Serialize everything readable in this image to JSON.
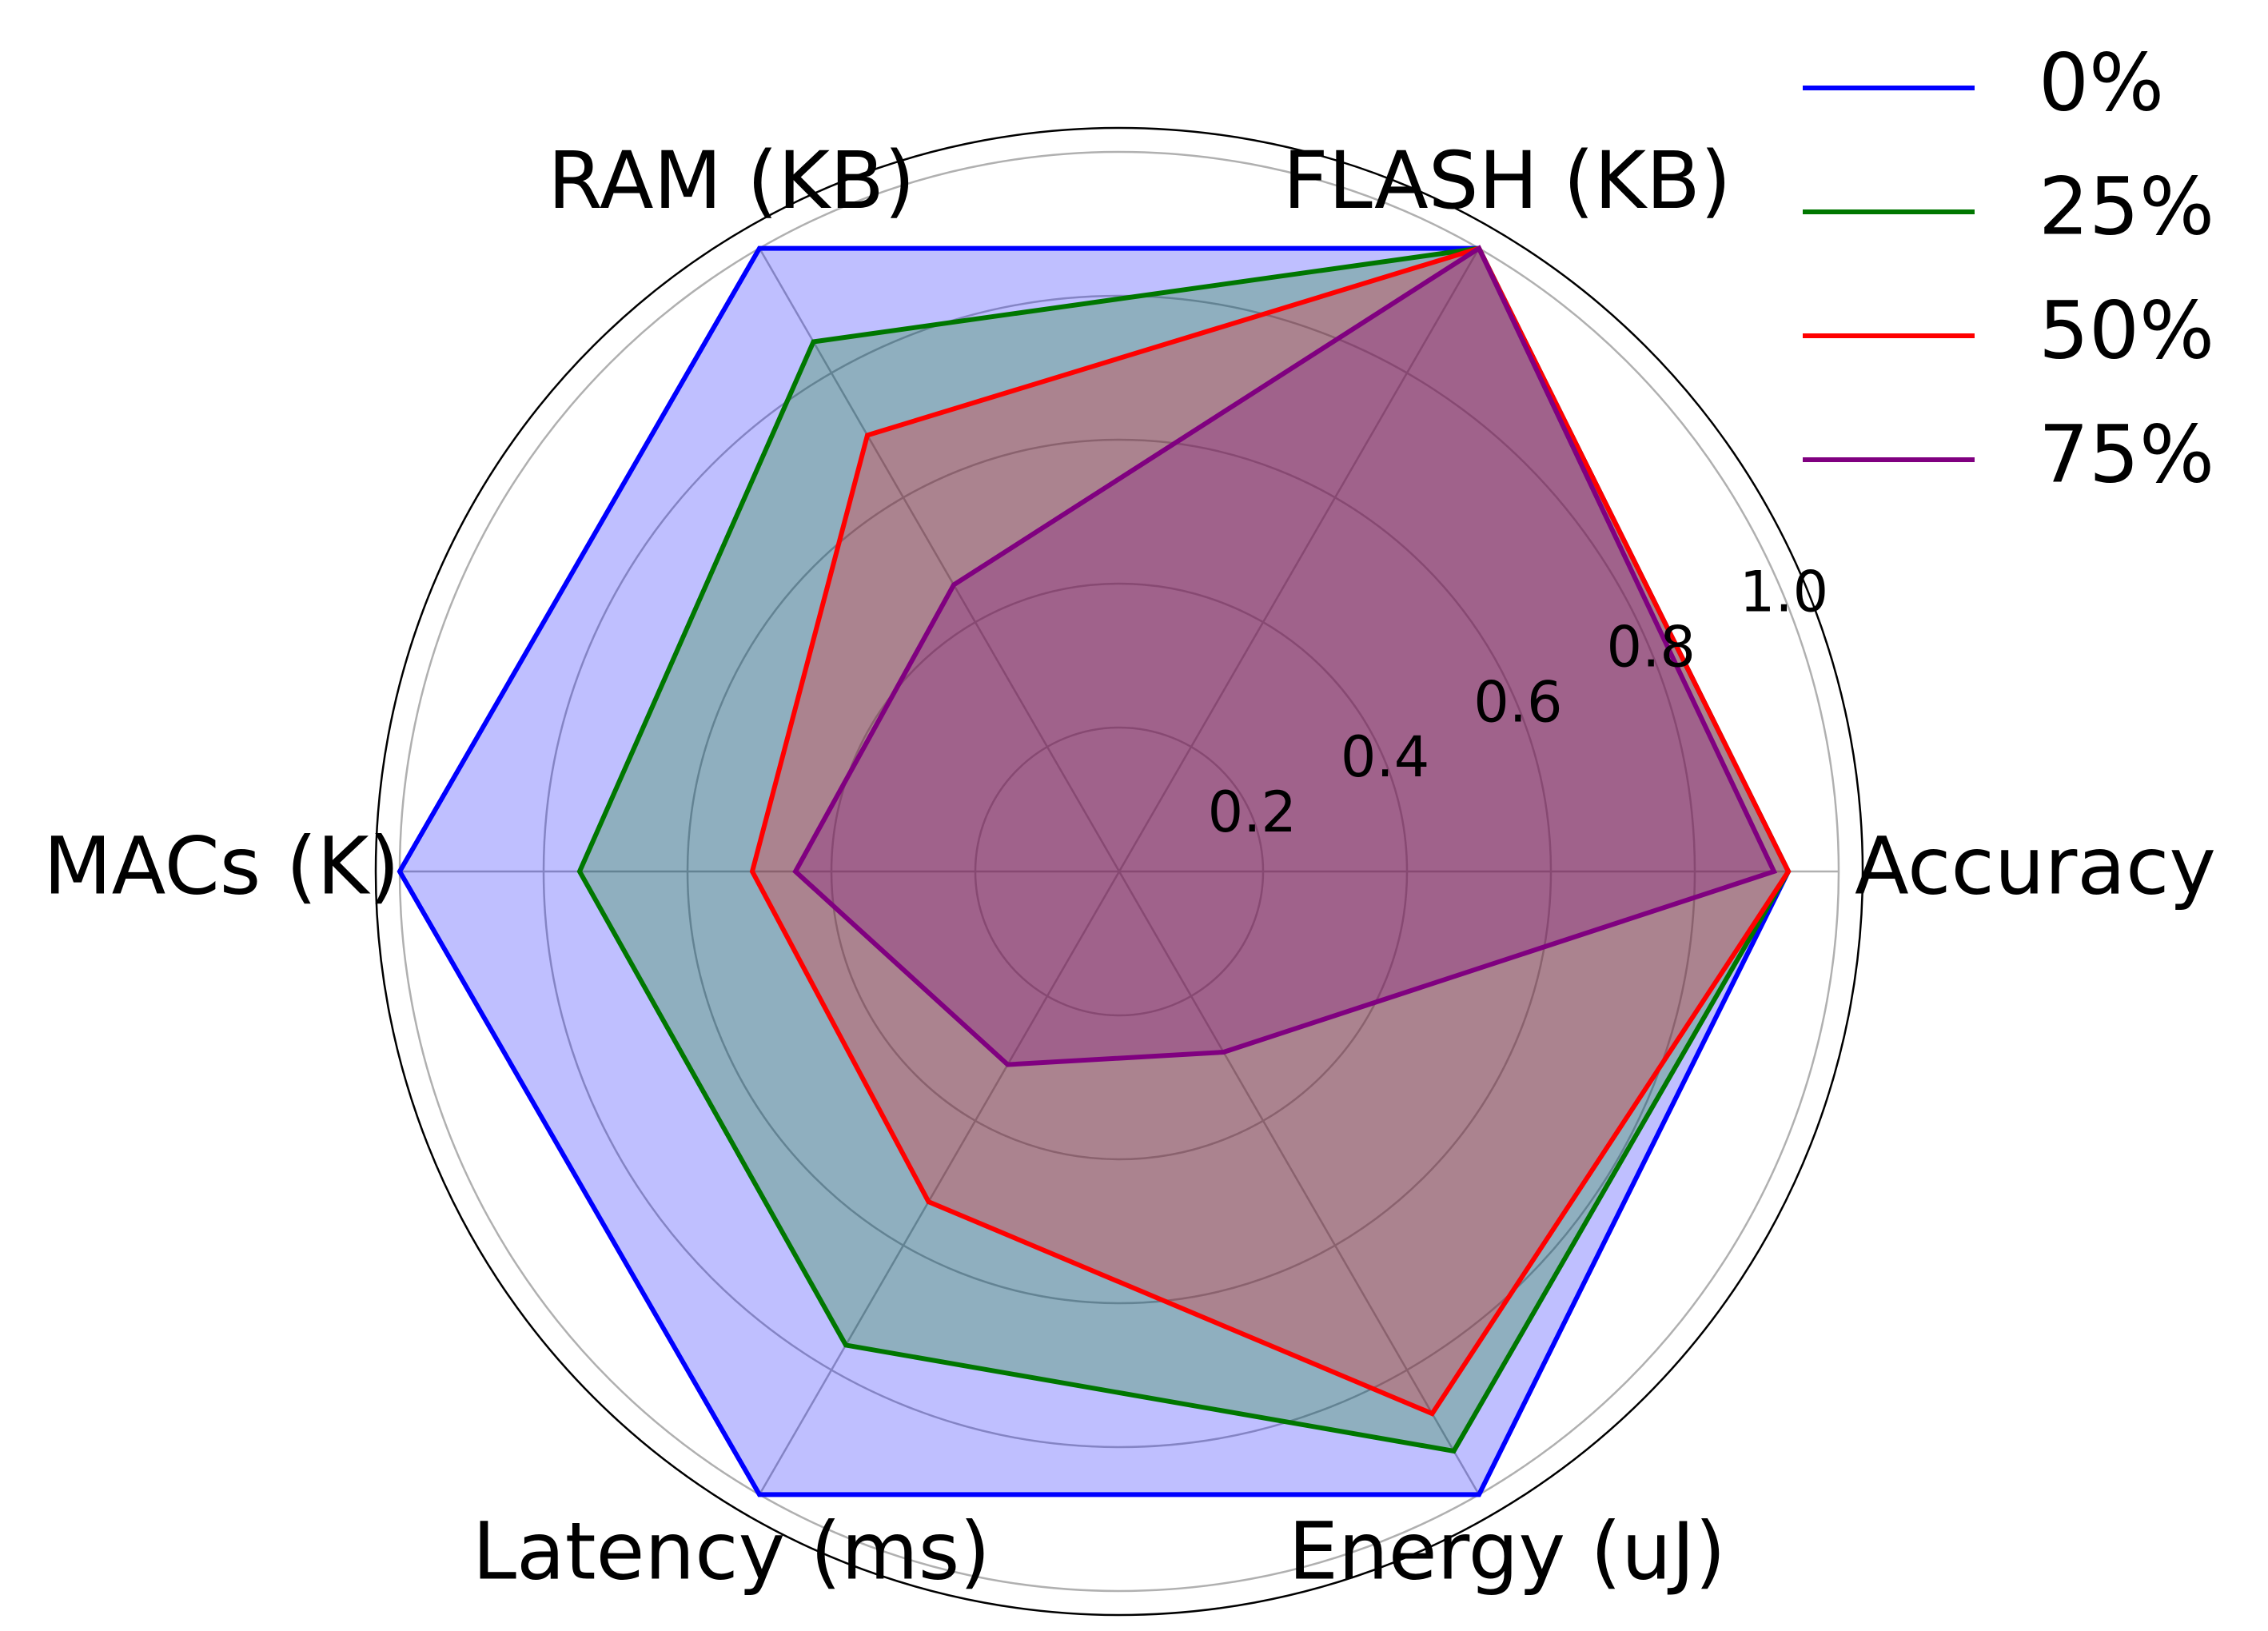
{
  "chart_data": {
    "type": "radar",
    "categories": [
      "Accuracy",
      "FLASH (KB)",
      "RAM (KB)",
      "MACs (K)",
      "Latency (ms)",
      "Energy (uJ)"
    ],
    "rlim": [
      0,
      1.0
    ],
    "r_ticks": [
      "0.2",
      "0.4",
      "0.6",
      "0.8",
      "1.0"
    ],
    "grid": true,
    "legend_position": "top-right",
    "series": [
      {
        "name": "0%",
        "color": "#0000ff",
        "fill": "#0000ff",
        "fill_opacity": 0.25,
        "values": [
          0.93,
          1.0,
          1.0,
          1.0,
          1.0,
          1.0
        ]
      },
      {
        "name": "25%",
        "color": "#007700",
        "fill": "#008000",
        "fill_opacity": 0.25,
        "values": [
          0.93,
          1.0,
          0.85,
          0.75,
          0.76,
          0.93
        ]
      },
      {
        "name": "50%",
        "color": "#ff0000",
        "fill": "#ff0000",
        "fill_opacity": 0.25,
        "values": [
          0.93,
          1.0,
          0.7,
          0.51,
          0.53,
          0.87
        ]
      },
      {
        "name": "75%",
        "color": "#800080",
        "fill": "#800080",
        "fill_opacity": 0.25,
        "values": [
          0.91,
          1.0,
          0.46,
          0.45,
          0.31,
          0.29
        ]
      }
    ]
  }
}
